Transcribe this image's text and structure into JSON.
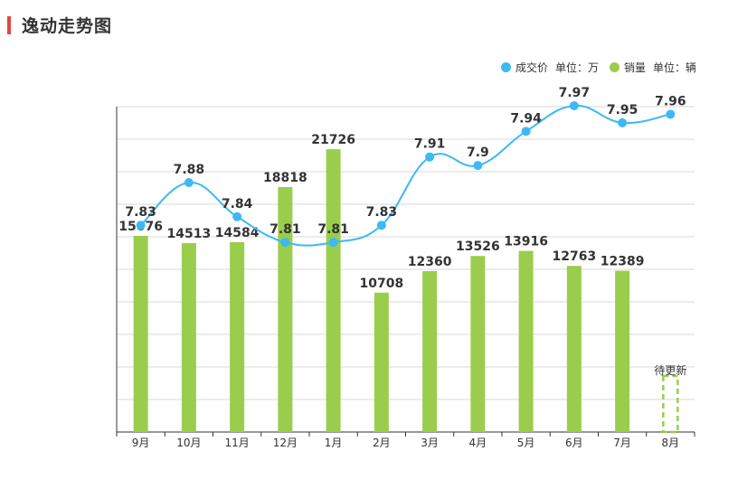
{
  "title": "逸动走势图",
  "legend": {
    "price_label": "成交价",
    "price_unit": "单位：万",
    "sales_label": "销量",
    "sales_unit": "单位：辆"
  },
  "colors": {
    "price": "#3db8f5",
    "sales": "#9acd4c",
    "title_accent": "#e0483c"
  },
  "chart_data": {
    "type": "bar+line",
    "categories": [
      "9月",
      "10月",
      "11月",
      "12月",
      "1月",
      "2月",
      "3月",
      "4月",
      "5月",
      "6月",
      "7月",
      "8月"
    ],
    "series": [
      {
        "name": "成交价",
        "type": "line",
        "unit": "单位：万",
        "values": [
          7.83,
          7.88,
          7.84,
          7.81,
          7.81,
          7.83,
          7.91,
          7.9,
          7.94,
          7.97,
          7.95,
          7.96
        ]
      },
      {
        "name": "销量",
        "type": "bar",
        "unit": "单位：辆",
        "values": [
          15076,
          14513,
          14584,
          18818,
          21726,
          10708,
          12360,
          13526,
          13916,
          12763,
          12389,
          null
        ]
      }
    ],
    "pending_label": "待更新",
    "grid": true,
    "legend_position": "top-right"
  }
}
